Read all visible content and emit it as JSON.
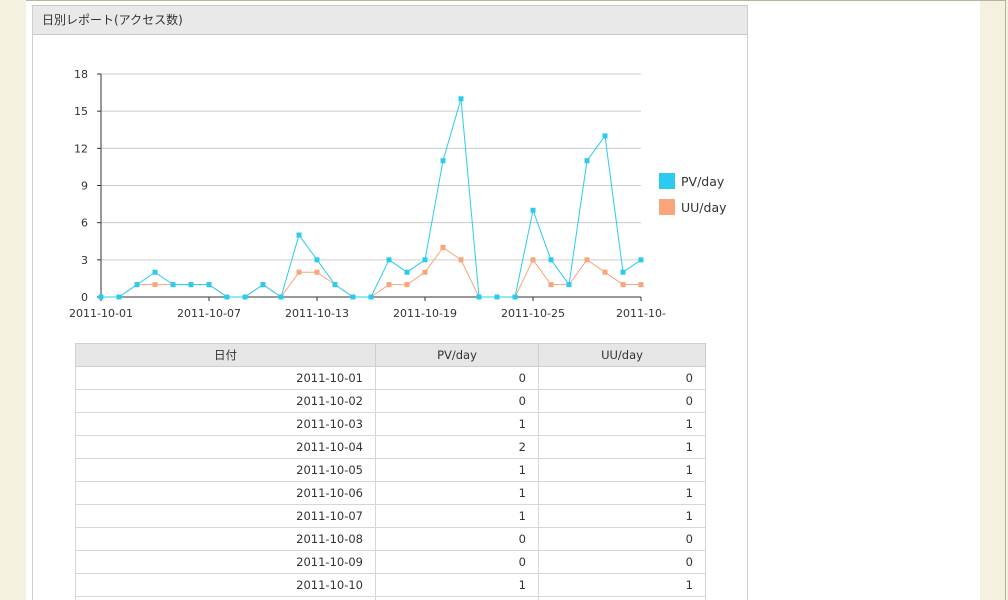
{
  "panel": {
    "title": "日別レポート(アクセス数)"
  },
  "chart_data": {
    "type": "line",
    "x": [
      "2011-10-01",
      "2011-10-02",
      "2011-10-03",
      "2011-10-04",
      "2011-10-05",
      "2011-10-06",
      "2011-10-07",
      "2011-10-08",
      "2011-10-09",
      "2011-10-10",
      "2011-10-11",
      "2011-10-12",
      "2011-10-13",
      "2011-10-14",
      "2011-10-15",
      "2011-10-16",
      "2011-10-17",
      "2011-10-18",
      "2011-10-19",
      "2011-10-20",
      "2011-10-21",
      "2011-10-22",
      "2011-10-23",
      "2011-10-24",
      "2011-10-25",
      "2011-10-26",
      "2011-10-27",
      "2011-10-28",
      "2011-10-29",
      "2011-10-30",
      "2011-10-31"
    ],
    "series": [
      {
        "name": "PV/day",
        "color": "#29ccf0",
        "values": [
          0,
          0,
          1,
          2,
          1,
          1,
          1,
          0,
          0,
          1,
          0,
          5,
          3,
          1,
          0,
          0,
          3,
          2,
          3,
          11,
          16,
          0,
          0,
          0,
          7,
          3,
          1,
          11,
          13,
          2,
          3
        ]
      },
      {
        "name": "UU/day",
        "color": "#f9a57a",
        "values": [
          0,
          0,
          1,
          1,
          1,
          1,
          1,
          0,
          0,
          1,
          0,
          2,
          2,
          1,
          0,
          0,
          1,
          1,
          2,
          4,
          3,
          0,
          0,
          0,
          3,
          1,
          1,
          3,
          2,
          1,
          1
        ]
      }
    ],
    "yticks": [
      "0",
      "3",
      "6",
      "9",
      "12",
      "15",
      "18"
    ],
    "xtick_labels": [
      "2011-10-01",
      "2011-10-07",
      "2011-10-13",
      "2011-10-19",
      "2011-10-25",
      "2011-10-"
    ],
    "ylim": [
      0,
      18
    ],
    "grid": true,
    "legend_position": "right"
  },
  "table": {
    "headers": [
      "日付",
      "PV/day",
      "UU/day"
    ],
    "rows": [
      [
        "2011-10-01",
        "0",
        "0"
      ],
      [
        "2011-10-02",
        "0",
        "0"
      ],
      [
        "2011-10-03",
        "1",
        "1"
      ],
      [
        "2011-10-04",
        "2",
        "1"
      ],
      [
        "2011-10-05",
        "1",
        "1"
      ],
      [
        "2011-10-06",
        "1",
        "1"
      ],
      [
        "2011-10-07",
        "1",
        "1"
      ],
      [
        "2011-10-08",
        "0",
        "0"
      ],
      [
        "2011-10-09",
        "0",
        "0"
      ],
      [
        "2011-10-10",
        "1",
        "1"
      ],
      [
        "",
        "",
        ""
      ]
    ]
  }
}
